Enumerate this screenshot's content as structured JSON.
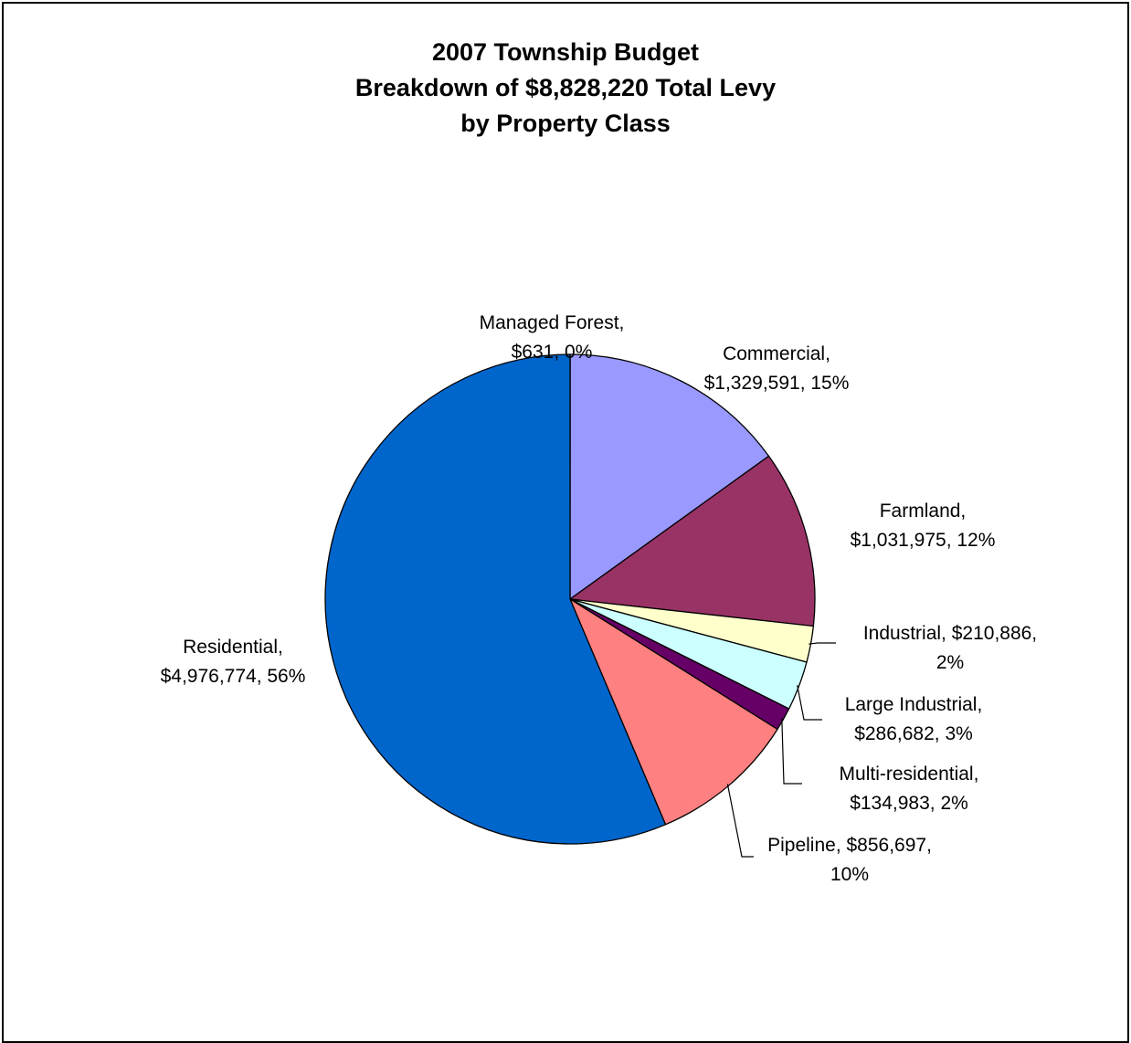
{
  "chart_data": {
    "type": "pie",
    "title": [
      "2007 Township Budget",
      "Breakdown of $8,828,220 Total Levy",
      "by Property Class"
    ],
    "slices": [
      {
        "name": "Managed Forest",
        "value": 631,
        "color": "#1f3d99",
        "label": [
          "Managed Forest,",
          "$631, 0%"
        ]
      },
      {
        "name": "Commercial",
        "value": 1329591,
        "color": "#9999ff",
        "label": [
          "Commercial,",
          "$1,329,591, 15%"
        ]
      },
      {
        "name": "Farmland",
        "value": 1031975,
        "color": "#993366",
        "label": [
          "Farmland,",
          "$1,031,975, 12%"
        ]
      },
      {
        "name": "Industrial",
        "value": 210886,
        "color": "#ffffcc",
        "label": [
          "Industrial, $210,886,",
          "2%"
        ]
      },
      {
        "name": "Large Industrial",
        "value": 286682,
        "color": "#ccffff",
        "label": [
          "Large Industrial,",
          "$286,682, 3%"
        ]
      },
      {
        "name": "Multi-residential",
        "value": 134983,
        "color": "#660066",
        "label": [
          "Multi-residential,",
          "$134,983, 2%"
        ]
      },
      {
        "name": "Pipeline",
        "value": 856697,
        "color": "#ff8080",
        "label": [
          "Pipeline, $856,697,",
          "10%"
        ]
      },
      {
        "name": "Residential",
        "value": 4976774,
        "color": "#0066cc",
        "label": [
          "Residential,",
          "$4,976,774, 56%"
        ]
      }
    ]
  }
}
